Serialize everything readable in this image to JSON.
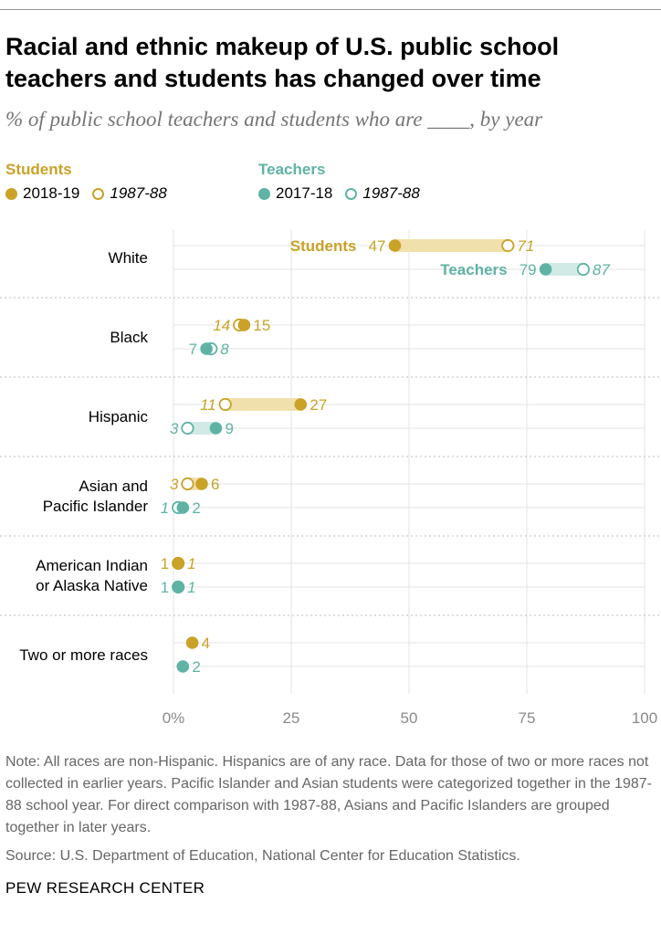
{
  "title": "Racial and ethnic makeup of U.S. public school teachers and students has changed over time",
  "subtitle": "% of public school teachers and students who are ____, by year",
  "legend": {
    "students_title": "Students",
    "students_new": "2018-19",
    "students_old": "1987-88",
    "teachers_title": "Teachers",
    "teachers_new": "2017-18",
    "teachers_old": "1987-88"
  },
  "colors": {
    "students": "#C9A227",
    "students_bar": "#F0E1AC",
    "teachers": "#5FB3A5",
    "teachers_bar": "#D2EAE5",
    "grid": "#E3E3E3",
    "divider": "#BDBDBD",
    "axis_text": "#8A8A8A"
  },
  "chart_data": {
    "type": "dot",
    "xlim": [
      0,
      100
    ],
    "xticks": [
      0,
      25,
      50,
      75,
      100
    ],
    "xtick_labels": [
      "0%",
      "25",
      "50",
      "75",
      "100"
    ],
    "inline_labels": {
      "students": "Students",
      "teachers": "Teachers"
    },
    "categories": [
      {
        "label": [
          "White"
        ],
        "students": {
          "new": 47,
          "old": 71
        },
        "teachers": {
          "new": 79,
          "old": 87
        }
      },
      {
        "label": [
          "Black"
        ],
        "students": {
          "new": 15,
          "old": 14
        },
        "teachers": {
          "new": 7,
          "old": 8
        }
      },
      {
        "label": [
          "Hispanic"
        ],
        "students": {
          "new": 27,
          "old": 11
        },
        "teachers": {
          "new": 9,
          "old": 3
        }
      },
      {
        "label": [
          "Asian and",
          "Pacific Islander"
        ],
        "students": {
          "new": 6,
          "old": 3
        },
        "teachers": {
          "new": 2,
          "old": 1
        }
      },
      {
        "label": [
          "American Indian",
          "or Alaska Native"
        ],
        "students": {
          "new": 1,
          "old": 1
        },
        "teachers": {
          "new": 1,
          "old": 1
        }
      },
      {
        "label": [
          "Two or more races"
        ],
        "students": {
          "new": 4,
          "old": null
        },
        "teachers": {
          "new": 2,
          "old": null
        }
      }
    ]
  },
  "note": "Note: All races are non-Hispanic. Hispanics are of any race. Data for those of two or more races not collected in earlier years. Pacific Islander and Asian students were categorized together in the 1987-88 school year. For direct comparison with 1987-88, Asians and Pacific Islanders are grouped together in later years.",
  "source": "Source: U.S. Department of Education, National Center for Education Statistics.",
  "brand": "PEW RESEARCH CENTER"
}
